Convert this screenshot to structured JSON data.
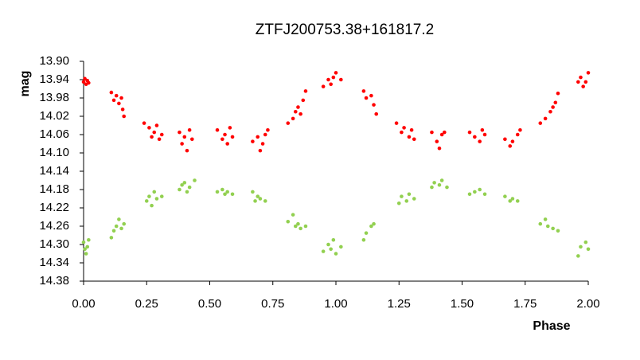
{
  "chart_data": {
    "type": "scatter",
    "title": "ZTFJ200753.38+161817.2",
    "x_label": "Phase",
    "y_label": "mag",
    "xlim": [
      0,
      2
    ],
    "xticks": [
      {
        "value": 0,
        "label": "0.00"
      },
      0.25,
      {
        "value": 0.5,
        "label": "0.50"
      },
      0.75,
      {
        "value": 1,
        "label": "1.00"
      },
      1.25,
      {
        "value": 1.5,
        "label": "1.50"
      },
      1.75,
      {
        "value": 2,
        "label": "2.00"
      }
    ],
    "ylim": [
      13.9,
      14.38
    ],
    "y_inverted": true,
    "yticks": [
      {
        "value": 13.9,
        "label": "13.90"
      },
      13.94,
      13.98,
      14.02,
      14.06,
      {
        "value": 14.1,
        "label": "14.10"
      },
      14.14,
      14.18,
      14.22,
      14.26,
      {
        "value": 14.3,
        "label": "14.30"
      },
      14.34,
      14.38
    ],
    "series": [
      {
        "color": "#ff0000",
        "x": [
          0.0,
          0.005,
          0.01,
          0.015,
          0.02,
          0.11,
          0.12,
          0.13,
          0.14,
          0.15,
          0.155,
          0.16,
          0.24,
          0.26,
          0.27,
          0.28,
          0.29,
          0.3,
          0.31,
          0.38,
          0.39,
          0.4,
          0.41,
          0.42,
          0.43,
          0.53,
          0.55,
          0.56,
          0.57,
          0.58,
          0.59,
          0.67,
          0.69,
          0.7,
          0.71,
          0.72,
          0.73,
          0.81,
          0.83,
          0.84,
          0.85,
          0.86,
          0.87,
          0.88,
          0.95,
          0.97,
          0.98,
          0.99,
          1.0,
          1.02,
          1.11,
          1.12,
          1.14,
          1.15,
          1.16,
          1.24,
          1.26,
          1.27,
          1.29,
          1.3,
          1.31,
          1.38,
          1.4,
          1.41,
          1.42,
          1.43,
          1.53,
          1.55,
          1.57,
          1.58,
          1.59,
          1.67,
          1.69,
          1.7,
          1.72,
          1.73,
          1.81,
          1.83,
          1.85,
          1.86,
          1.87,
          1.88,
          1.96,
          1.97,
          1.98,
          1.99,
          2.0
        ],
        "values": [
          13.945,
          13.938,
          13.95,
          13.942,
          13.947,
          13.968,
          13.985,
          13.975,
          13.992,
          13.98,
          14.005,
          14.02,
          14.035,
          14.045,
          14.065,
          14.055,
          14.04,
          14.07,
          14.06,
          14.055,
          14.08,
          14.065,
          14.095,
          14.05,
          14.07,
          14.05,
          14.07,
          14.06,
          14.08,
          14.045,
          14.065,
          14.075,
          14.065,
          14.095,
          14.08,
          14.06,
          14.05,
          14.035,
          14.025,
          14.01,
          14.0,
          14.015,
          13.985,
          13.965,
          13.955,
          13.94,
          13.95,
          13.935,
          13.925,
          13.94,
          13.965,
          13.98,
          13.975,
          13.995,
          14.015,
          14.035,
          14.055,
          14.045,
          14.065,
          14.05,
          14.07,
          14.055,
          14.075,
          14.09,
          14.06,
          14.055,
          14.055,
          14.065,
          14.075,
          14.05,
          14.06,
          14.07,
          14.085,
          14.075,
          14.06,
          14.05,
          14.035,
          14.025,
          14.01,
          14.0,
          13.99,
          13.97,
          13.945,
          13.935,
          13.955,
          13.945,
          13.925
        ]
      },
      {
        "color": "#92d050",
        "x": [
          0.0,
          0.005,
          0.01,
          0.015,
          0.02,
          0.11,
          0.12,
          0.13,
          0.14,
          0.15,
          0.16,
          0.25,
          0.26,
          0.27,
          0.28,
          0.29,
          0.31,
          0.38,
          0.39,
          0.4,
          0.41,
          0.42,
          0.44,
          0.53,
          0.55,
          0.56,
          0.57,
          0.59,
          0.67,
          0.68,
          0.69,
          0.7,
          0.72,
          0.81,
          0.83,
          0.84,
          0.85,
          0.86,
          0.88,
          0.95,
          0.97,
          0.98,
          0.99,
          1.0,
          1.02,
          1.11,
          1.12,
          1.14,
          1.15,
          1.25,
          1.26,
          1.28,
          1.29,
          1.31,
          1.38,
          1.39,
          1.41,
          1.42,
          1.44,
          1.53,
          1.55,
          1.57,
          1.59,
          1.67,
          1.69,
          1.7,
          1.72,
          1.81,
          1.83,
          1.84,
          1.86,
          1.88,
          1.96,
          1.97,
          1.99,
          2.0
        ],
        "values": [
          14.295,
          14.31,
          14.32,
          14.305,
          14.29,
          14.285,
          14.27,
          14.26,
          14.245,
          14.265,
          14.255,
          14.205,
          14.195,
          14.215,
          14.185,
          14.2,
          14.195,
          14.18,
          14.17,
          14.165,
          14.185,
          14.175,
          14.16,
          14.185,
          14.18,
          14.19,
          14.185,
          14.19,
          14.185,
          14.205,
          14.195,
          14.2,
          14.205,
          14.25,
          14.235,
          14.26,
          14.255,
          14.265,
          14.26,
          14.315,
          14.3,
          14.31,
          14.29,
          14.32,
          14.305,
          14.29,
          14.275,
          14.26,
          14.255,
          14.21,
          14.195,
          14.205,
          14.19,
          14.2,
          14.175,
          14.165,
          14.17,
          14.16,
          14.175,
          14.19,
          14.185,
          14.18,
          14.19,
          14.195,
          14.205,
          14.2,
          14.205,
          14.255,
          14.245,
          14.26,
          14.265,
          14.27,
          14.325,
          14.305,
          14.295,
          14.31
        ]
      }
    ]
  }
}
